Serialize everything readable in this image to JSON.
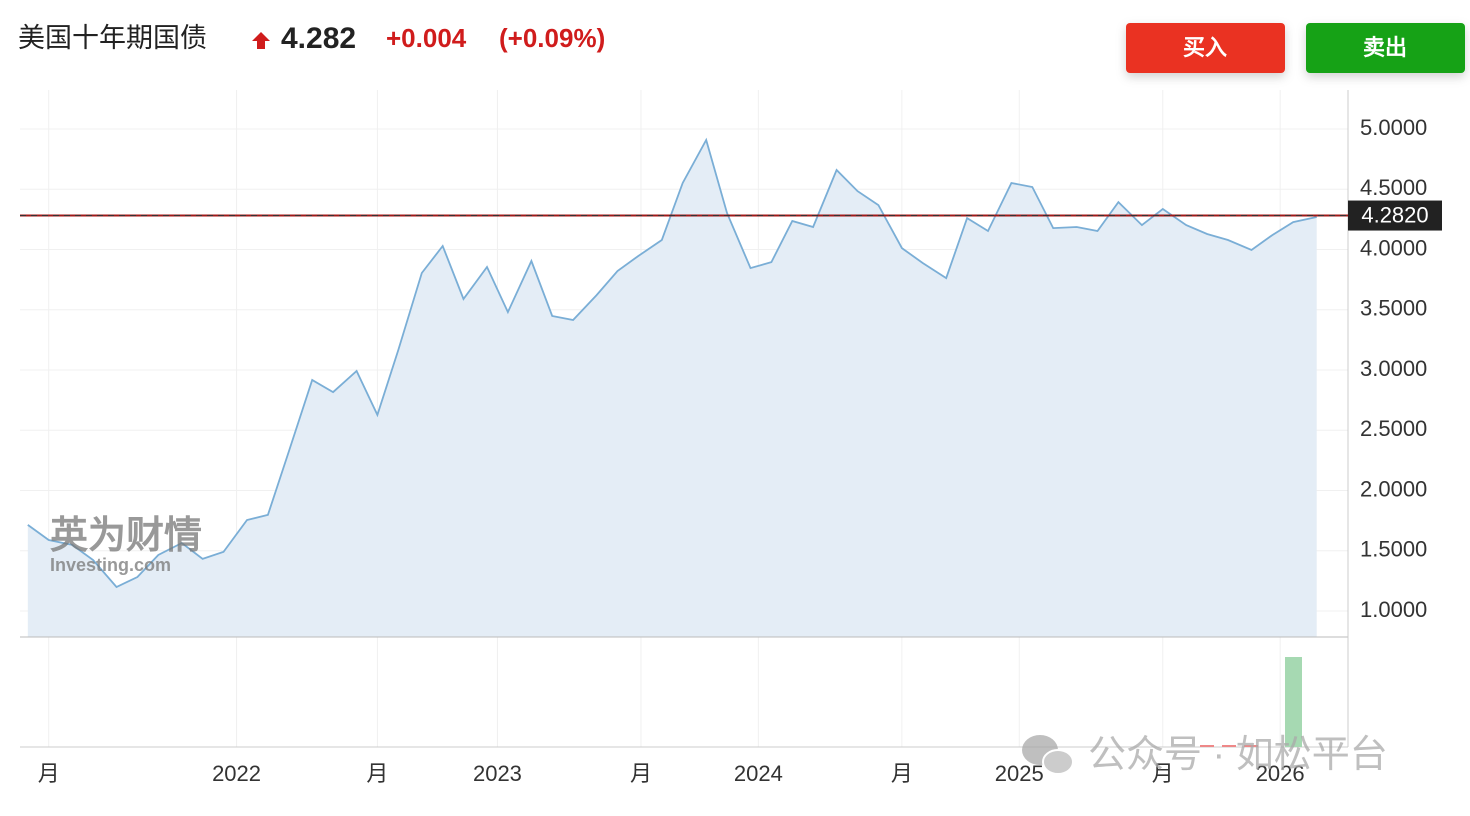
{
  "header": {
    "title": "美国十年期国债",
    "price": "4.282",
    "change": "+0.004",
    "change_pct": "(+0.09%)"
  },
  "buttons": {
    "buy": "买入",
    "sell": "卖出"
  },
  "watermarks": {
    "logo_cn": "英为财情",
    "logo_en": "Investing.com",
    "wechat": "公众号 · 如松平台"
  },
  "chart_data": {
    "type": "area",
    "x": [
      2021.2,
      2021.28,
      2021.37,
      2021.45,
      2021.54,
      2021.62,
      2021.7,
      2021.79,
      2021.87,
      2021.95,
      2022.04,
      2022.12,
      2022.2,
      2022.29,
      2022.37,
      2022.46,
      2022.54,
      2022.62,
      2022.71,
      2022.79,
      2022.87,
      2022.96,
      2023.04,
      2023.13,
      2023.21,
      2023.29,
      2023.38,
      2023.46,
      2023.54,
      2023.63,
      2023.71,
      2023.8,
      2023.88,
      2023.97,
      2024.05,
      2024.13,
      2024.21,
      2024.3,
      2024.38,
      2024.46,
      2024.55,
      2024.63,
      2024.72,
      2024.8,
      2024.88,
      2024.97,
      2025.05,
      2025.13,
      2025.22,
      2025.3,
      2025.38,
      2025.47,
      2025.55,
      2025.64,
      2025.72,
      2025.8,
      2025.89,
      2025.97,
      2026.05,
      2026.14
    ],
    "series": [
      {
        "name": "美国十年期国债",
        "color": "#7aaed6",
        "values": [
          1.714,
          1.589,
          1.548,
          1.423,
          1.199,
          1.282,
          1.465,
          1.564,
          1.432,
          1.49,
          1.755,
          1.797,
          2.32,
          2.917,
          2.817,
          2.992,
          2.627,
          3.166,
          3.805,
          4.029,
          3.589,
          3.855,
          3.481,
          3.905,
          3.448,
          3.415,
          3.622,
          3.822,
          3.946,
          4.079,
          4.552,
          4.909,
          4.303,
          3.846,
          3.896,
          4.237,
          4.187,
          4.66,
          4.485,
          4.369,
          4.012,
          3.888,
          3.763,
          4.261,
          4.154,
          4.552,
          4.519,
          4.178,
          4.187,
          4.154,
          4.394,
          4.203,
          4.336,
          4.203,
          4.129,
          4.079,
          3.996,
          4.12,
          4.228,
          4.27
        ]
      }
    ],
    "fill_color": "#e4edf6",
    "last": {
      "value": 4.282,
      "label": "4.2820"
    },
    "last_color": "#a01818",
    "xlim": [
      2021.17,
      2026.26
    ],
    "xticks": [
      {
        "value": 2021.28,
        "label": "月"
      },
      2022,
      {
        "value": 2022.54,
        "label": "月"
      },
      2023,
      {
        "value": 2023.55,
        "label": "月"
      },
      2024,
      {
        "value": 2024.55,
        "label": "月"
      },
      2025,
      {
        "value": 2025.55,
        "label": "月"
      },
      2026
    ],
    "ylim": [
      0.784,
      5.324
    ],
    "yticks": [
      {
        "value": 1,
        "label": "1.0000"
      },
      {
        "value": 1.5,
        "label": "1.5000"
      },
      {
        "value": 2,
        "label": "2.0000"
      },
      {
        "value": 2.5,
        "label": "2.5000"
      },
      {
        "value": 3,
        "label": "3.0000"
      },
      {
        "value": 3.5,
        "label": "3.5000"
      },
      {
        "value": 4,
        "label": "4.0000"
      },
      {
        "value": 4.5,
        "label": "4.5000"
      },
      {
        "value": 5,
        "label": "5.0000"
      }
    ],
    "grid": true
  }
}
